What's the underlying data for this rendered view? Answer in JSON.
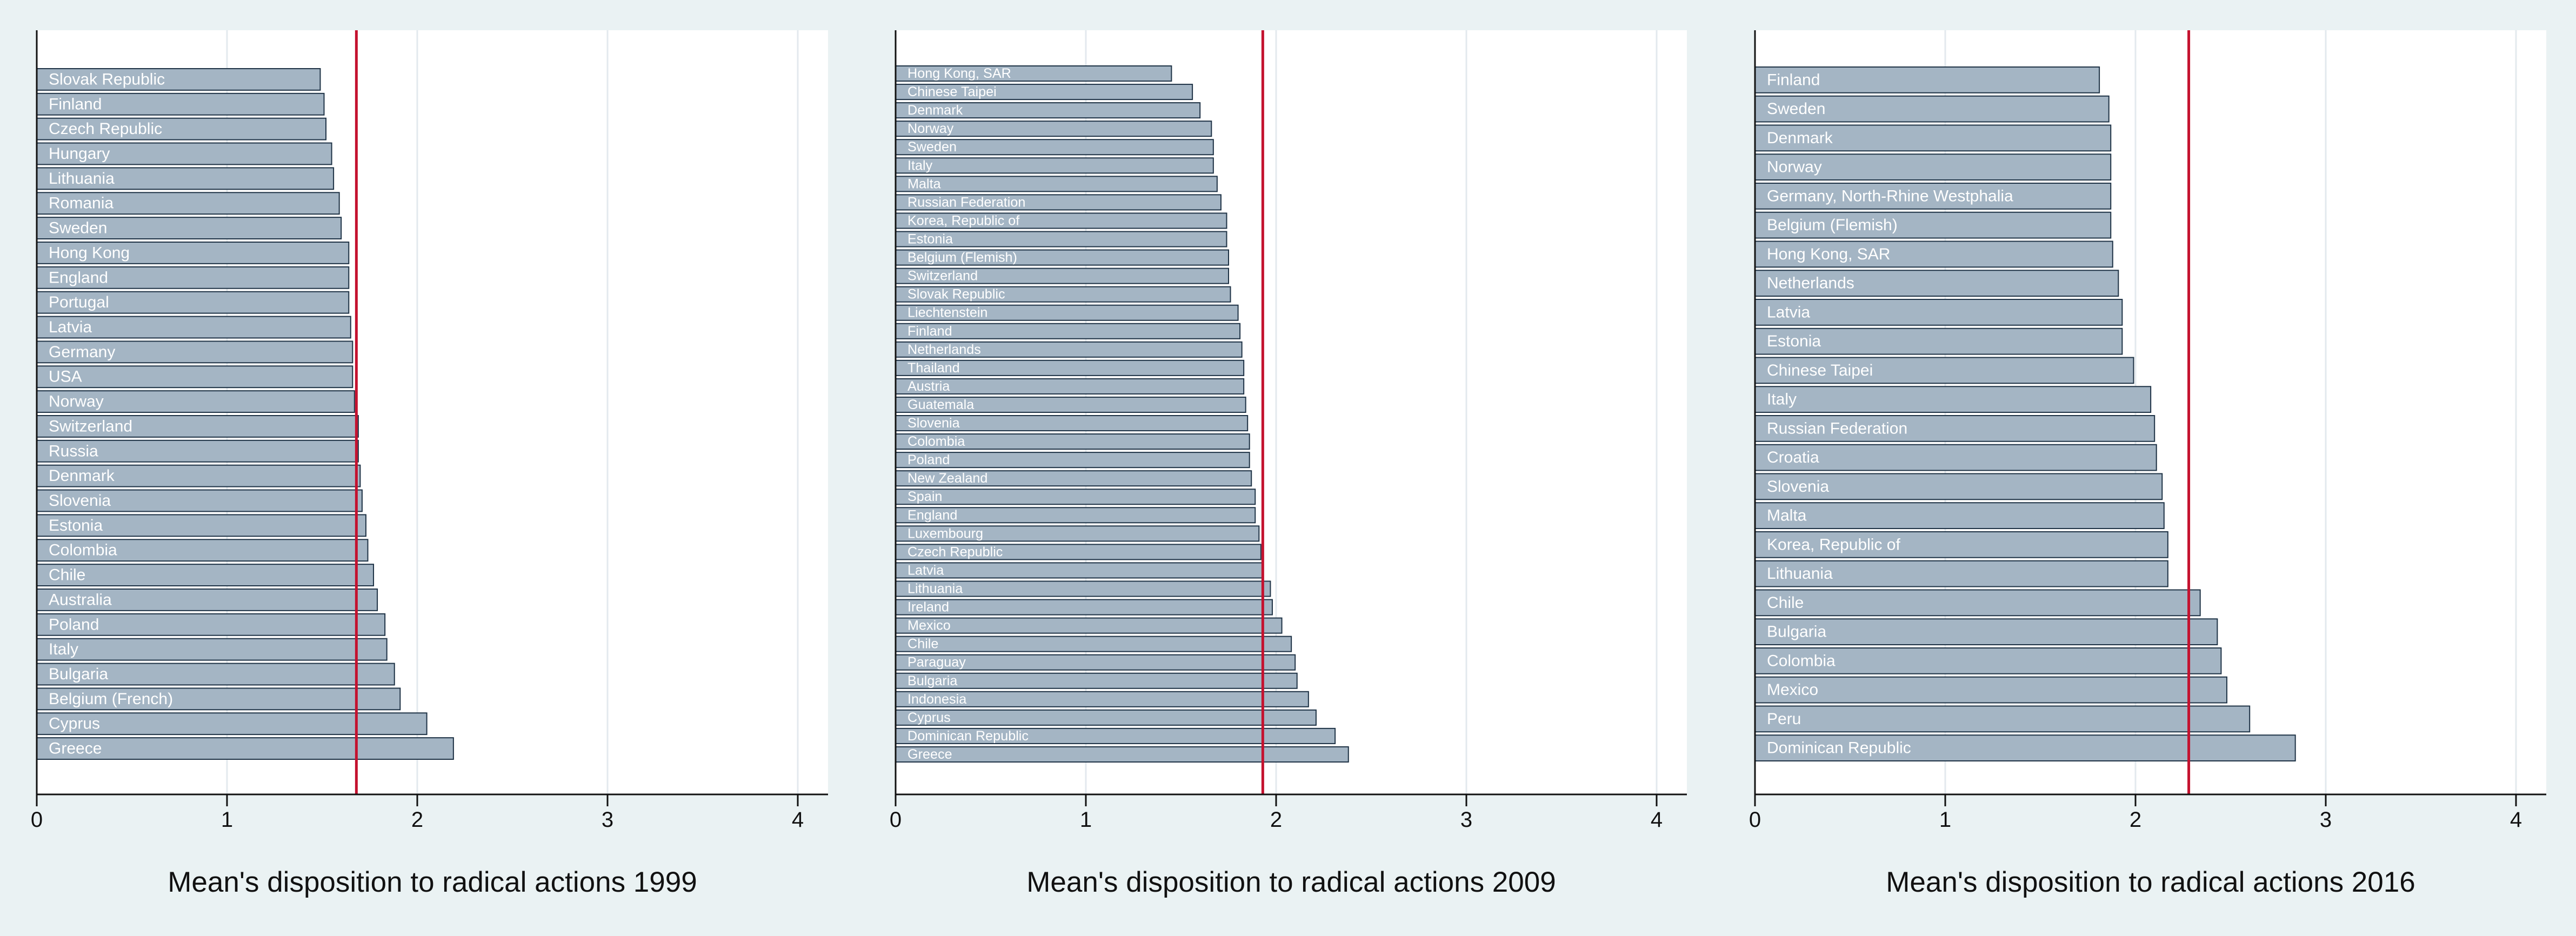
{
  "chart_data": [
    {
      "type": "bar",
      "orientation": "horizontal",
      "title": "",
      "xlabel": "Mean's disposition to radical actions 1999",
      "xlim": [
        0,
        4.2
      ],
      "xticks": [
        0,
        1,
        2,
        3,
        4
      ],
      "reference_line": 1.68,
      "grid": true,
      "bar_color": "#a4b5c4",
      "line_color": "#c4122f",
      "categories": [
        "Slovak Republic",
        "Finland",
        "Czech Republic",
        "Hungary",
        "Lithuania",
        "Romania",
        "Sweden",
        "Hong Kong",
        "England",
        "Portugal",
        "Latvia",
        "Germany",
        "USA",
        "Norway",
        "Switzerland",
        "Russia",
        "Denmark",
        "Slovenia",
        "Estonia",
        "Colombia",
        "Chile",
        "Australia",
        "Poland",
        "Italy",
        "Bulgaria",
        "Belgium (French)",
        "Cyprus",
        "Greece"
      ],
      "values": [
        1.49,
        1.51,
        1.52,
        1.55,
        1.56,
        1.59,
        1.6,
        1.64,
        1.64,
        1.64,
        1.65,
        1.66,
        1.66,
        1.67,
        1.69,
        1.69,
        1.7,
        1.71,
        1.73,
        1.74,
        1.77,
        1.79,
        1.83,
        1.84,
        1.88,
        1.91,
        2.05,
        2.19
      ]
    },
    {
      "type": "bar",
      "orientation": "horizontal",
      "title": "",
      "xlabel": "Mean's disposition to radical actions 2009",
      "xlim": [
        0,
        4.2
      ],
      "xticks": [
        0,
        1,
        2,
        3,
        4
      ],
      "reference_line": 1.93,
      "grid": true,
      "bar_color": "#a4b5c4",
      "line_color": "#c4122f",
      "categories": [
        "Hong Kong, SAR",
        "Chinese Taipei",
        "Denmark",
        "Norway",
        "Sweden",
        "Italy",
        "Malta",
        "Russian Federation",
        "Korea, Republic of",
        "Estonia",
        "Belgium (Flemish)",
        "Switzerland",
        "Slovak Republic",
        "Liechtenstein",
        "Finland",
        "Netherlands",
        "Thailand",
        "Austria",
        "Guatemala",
        "Slovenia",
        "Colombia",
        "Poland",
        "New Zealand",
        "Spain",
        "England",
        "Luxembourg",
        "Czech Republic",
        "Latvia",
        "Lithuania",
        "Ireland",
        "Mexico",
        "Chile",
        "Paraguay",
        "Bulgaria",
        "Indonesia",
        "Cyprus",
        "Dominican Republic",
        "Greece"
      ],
      "values": [
        1.45,
        1.56,
        1.6,
        1.66,
        1.67,
        1.67,
        1.69,
        1.71,
        1.74,
        1.74,
        1.75,
        1.75,
        1.76,
        1.8,
        1.81,
        1.82,
        1.83,
        1.83,
        1.84,
        1.85,
        1.86,
        1.86,
        1.87,
        1.89,
        1.89,
        1.91,
        1.92,
        1.93,
        1.97,
        1.98,
        2.03,
        2.08,
        2.1,
        2.11,
        2.17,
        2.21,
        2.31,
        2.38
      ]
    },
    {
      "type": "bar",
      "orientation": "horizontal",
      "title": "",
      "xlabel": "Mean's disposition to radical actions 2016",
      "xlim": [
        0,
        4.2
      ],
      "xticks": [
        0,
        1,
        2,
        3,
        4
      ],
      "reference_line": 2.28,
      "grid": true,
      "bar_color": "#a4b5c4",
      "line_color": "#c4122f",
      "categories": [
        "Finland",
        "Sweden",
        "Denmark",
        "Norway",
        "Germany, North-Rhine Westphalia",
        "Belgium (Flemish)",
        "Hong Kong, SAR",
        "Netherlands",
        "Latvia",
        "Estonia",
        "Chinese Taipei",
        "Italy",
        "Russian Federation",
        "Croatia",
        "Slovenia",
        "Malta",
        "Korea, Republic of",
        "Lithuania",
        "Chile",
        "Bulgaria",
        "Colombia",
        "Mexico",
        "Peru",
        "Dominican Republic"
      ],
      "values": [
        1.81,
        1.86,
        1.87,
        1.87,
        1.87,
        1.87,
        1.88,
        1.91,
        1.93,
        1.93,
        1.99,
        2.08,
        2.1,
        2.11,
        2.14,
        2.15,
        2.17,
        2.17,
        2.34,
        2.43,
        2.45,
        2.48,
        2.6,
        2.84
      ]
    }
  ]
}
